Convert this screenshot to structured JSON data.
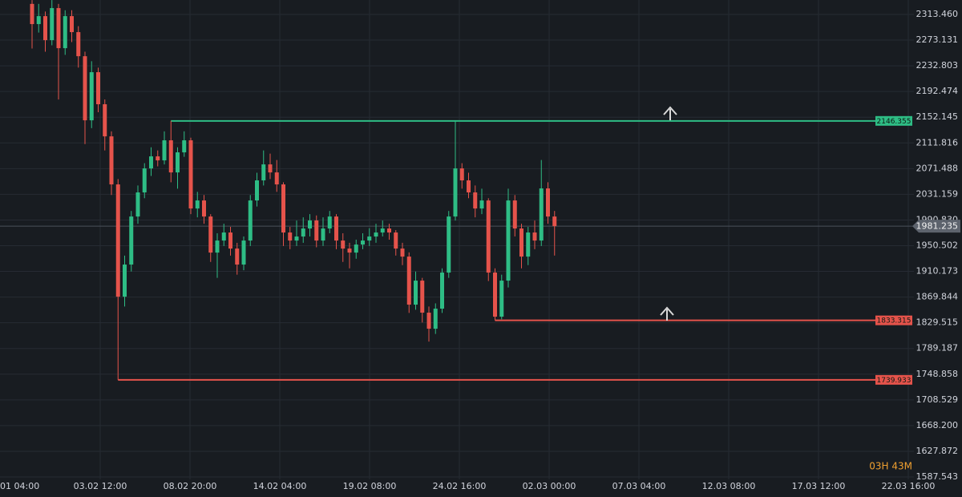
{
  "chart_data": {
    "type": "candlestick",
    "categories": [
      "01 04:00",
      "03.02 12:00",
      "08.02 20:00",
      "14.02 04:00",
      "19.02 08:00",
      "24.02 16:00",
      "02.03 00:00",
      "07.03 04:00",
      "12.03 08:00",
      "17.03 12:00",
      "22.03 16:00"
    ],
    "ylim": [
      1583.77,
      2336.1
    ],
    "yticks": [
      {
        "value": 2313.46,
        "label": "2313.460"
      },
      2273.131,
      2232.803,
      2192.474,
      2152.145,
      2111.816,
      2071.488,
      2031.159,
      {
        "value": 1990.83,
        "label": "1990.830"
      },
      1950.502,
      1910.173,
      1869.844,
      1829.515,
      1789.187,
      1748.858,
      1708.529,
      {
        "value": 1668.2,
        "label": "1668.200"
      },
      1627.872,
      1587.543
    ],
    "grid": true,
    "up_color": "#2ebd85",
    "down_color": "#e5534b",
    "open": [
      2330.0,
      2298.3,
      2310.8,
      2273.1,
      2323.4,
      2260.5,
      2310.8,
      2285.7,
      2247.9,
      2147.3,
      2222.8,
      2172.5,
      2122.1,
      2046.7,
      1870.5,
      1920.9,
      1996.3,
      2034.1,
      2071.8,
      2090.7,
      2084.4,
      2115.9,
      2065.5,
      2097.0,
      2115.9,
      2008.9,
      2021.5,
      1996.3,
      1939.7,
      1958.6,
      1971.2,
      1946.0,
      1920.9,
      1958.6,
      2021.5,
      2053.0,
      2078.1,
      2065.5,
      2046.7,
      1971.2,
      1958.6,
      1964.9,
      1977.5,
      1990.1,
      1958.6,
      1977.5,
      1996.3,
      1958.6,
      1946.0,
      1939.7,
      1952.3,
      1958.6,
      1964.9,
      1971.2,
      1977.5,
      1971.2,
      1946.0,
      1933.4,
      1858.0,
      1895.7,
      1845.4,
      1820.2,
      1851.7,
      1908.3,
      1996.3,
      2071.8,
      2053.0,
      2034.1,
      2008.9,
      2021.5,
      1908.3,
      1839.1,
      1895.7,
      2021.5,
      1977.5,
      1933.4,
      1971.2,
      1958.6,
      2040.4,
      1996.3
    ],
    "high": [
      2336.0,
      2330.0,
      2318.0,
      2336.0,
      2330.0,
      2320.0,
      2320.0,
      2295.0,
      2255.0,
      2240.0,
      2230.0,
      2180.0,
      2130.0,
      2055.0,
      1935.0,
      2005.0,
      2045.0,
      2080.0,
      2105.0,
      2100.0,
      2130.0,
      2146.4,
      2105.0,
      2130.0,
      2120.0,
      2035.0,
      2030.0,
      2000.0,
      1970.0,
      1985.0,
      1980.0,
      1955.0,
      1965.0,
      2030.0,
      2065.0,
      2100.0,
      2095.0,
      2085.0,
      2050.0,
      1980.0,
      1990.0,
      1995.0,
      2000.0,
      1998.0,
      1995.0,
      2005.0,
      2000.0,
      1970.0,
      1955.0,
      1960.0,
      1970.0,
      1978.0,
      1985.0,
      1990.0,
      1985.0,
      1975.0,
      1955.0,
      1940.0,
      1910.0,
      1900.0,
      1855.0,
      1860.0,
      1915.0,
      2005.0,
      2146.4,
      2080.0,
      2065.0,
      2045.0,
      2040.0,
      2025.0,
      1915.0,
      1905.0,
      2040.0,
      2030.0,
      1985.0,
      1980.0,
      1990.0,
      2085.0,
      2050.0,
      2005.0
    ],
    "low": [
      2260.0,
      2285.0,
      2255.0,
      2265.0,
      2180.0,
      2250.0,
      2270.0,
      2230.0,
      2110.0,
      2135.0,
      2160.0,
      2100.0,
      2030.0,
      1739.9,
      1855.0,
      1910.0,
      1985.0,
      2025.0,
      2060.0,
      2075.0,
      2078.0,
      2050.0,
      2040.0,
      2090.0,
      2000.0,
      1995.0,
      1985.0,
      1925.0,
      1900.0,
      1950.0,
      1935.0,
      1905.0,
      1912.0,
      1950.0,
      2012.0,
      2045.0,
      2055.0,
      2035.0,
      1950.0,
      1945.0,
      1950.0,
      1955.0,
      1965.0,
      1948.0,
      1950.0,
      1970.0,
      1945.0,
      1925.0,
      1915.0,
      1930.0,
      1945.0,
      1950.0,
      1955.0,
      1965.0,
      1960.0,
      1935.0,
      1920.0,
      1845.0,
      1850.0,
      1830.0,
      1800.0,
      1812.0,
      1845.0,
      1900.0,
      1990.0,
      2040.0,
      2025.0,
      1995.0,
      2000.0,
      1895.0,
      1833.3,
      1835.0,
      1885.0,
      1965.0,
      1915.0,
      1920.0,
      1945.0,
      1950.0,
      1985.0,
      1935.0
    ],
    "close": [
      2298.3,
      2310.8,
      2273.1,
      2323.4,
      2260.5,
      2310.8,
      2285.7,
      2247.9,
      2147.3,
      2222.8,
      2172.5,
      2122.1,
      2046.7,
      1870.5,
      1920.9,
      1996.3,
      2034.1,
      2071.8,
      2090.7,
      2084.4,
      2115.9,
      2065.5,
      2097.0,
      2115.9,
      2008.9,
      2021.5,
      1996.3,
      1939.7,
      1958.6,
      1971.2,
      1946.0,
      1920.9,
      1958.6,
      2021.5,
      2053.0,
      2078.1,
      2065.5,
      2046.7,
      1971.2,
      1958.6,
      1964.9,
      1977.5,
      1990.1,
      1958.6,
      1977.5,
      1996.3,
      1958.6,
      1946.0,
      1939.7,
      1952.3,
      1958.6,
      1964.9,
      1971.2,
      1977.5,
      1971.2,
      1946.0,
      1933.4,
      1858.0,
      1895.7,
      1845.4,
      1820.2,
      1851.7,
      1908.3,
      1996.3,
      2071.8,
      2053.0,
      2034.1,
      2008.9,
      2021.5,
      1908.3,
      1839.1,
      1895.7,
      2021.5,
      1977.5,
      1933.4,
      1971.2,
      1958.6,
      2040.4,
      1996.3,
      1981.2
    ],
    "levels": [
      {
        "value": 2146.355,
        "color": "#2ebd85"
      },
      {
        "value": 1833.315,
        "color": "#e5534b"
      },
      {
        "value": 1739.933,
        "color": "#e5534b"
      }
    ],
    "current_price": 1981.235,
    "timer": "03H 43M"
  }
}
